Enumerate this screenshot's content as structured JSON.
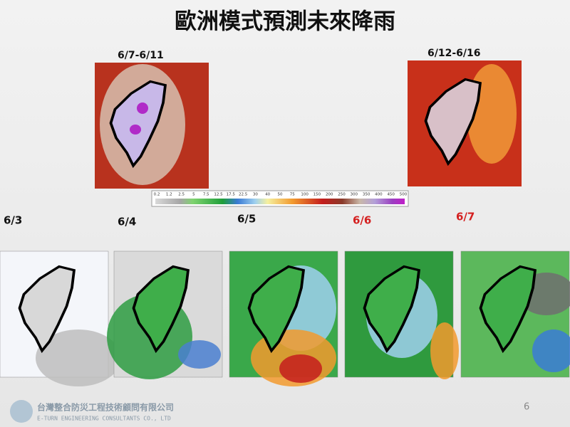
{
  "title": "歐洲模式預測未來降雨",
  "top_maps": [
    {
      "label": "6/7-6/11"
    },
    {
      "label": "6/12-6/16"
    }
  ],
  "colorbar": {
    "labels": [
      "0.2",
      "1.2",
      "2.5",
      "5",
      "7.5",
      "12.5",
      "17.5",
      "22.5",
      "30",
      "40",
      "50",
      "75",
      "100",
      "150",
      "200",
      "250",
      "300",
      "350",
      "400",
      "450",
      "500"
    ]
  },
  "daily_maps": [
    {
      "label": "6/3"
    },
    {
      "label": "6/4"
    },
    {
      "label": "6/5"
    },
    {
      "label": "6/6"
    },
    {
      "label": "6/7"
    }
  ],
  "footer": {
    "company": "台灣整合防災工程技術顧問有限公司",
    "company_en": "E-TURN ENGINEERING CONSULTANTS CO., LTD",
    "page": "6"
  }
}
